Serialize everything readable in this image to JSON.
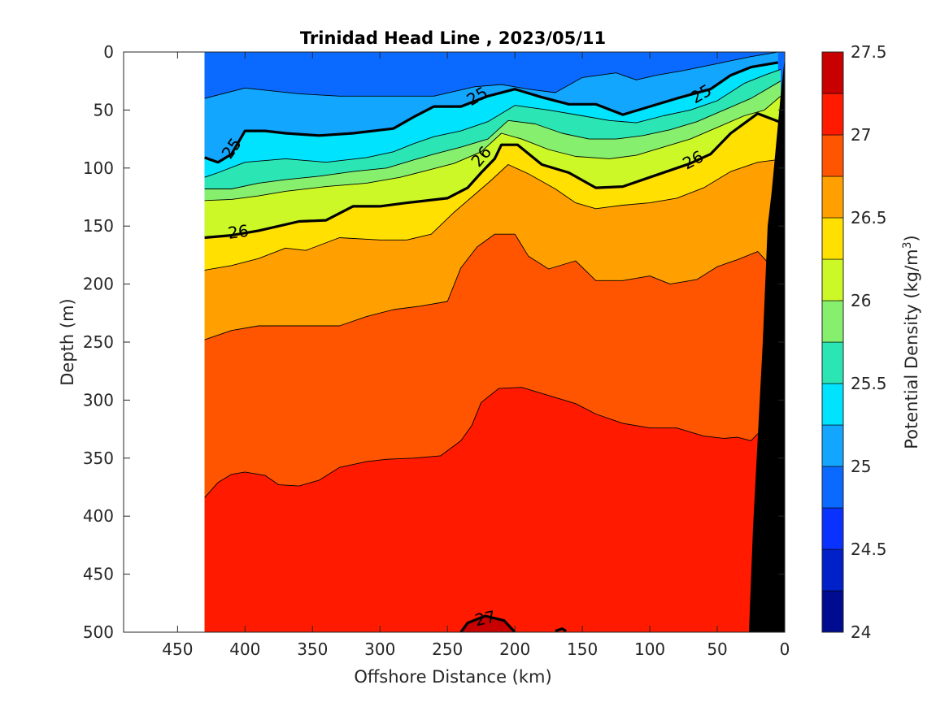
{
  "chart_data": {
    "type": "contour",
    "title": "Trinidad Head Line , 2023/05/11",
    "xlabel": "Offshore Distance (km)",
    "ylabel": "Depth (m)",
    "xlim": [
      490,
      0
    ],
    "ylim": [
      0,
      500
    ],
    "x_reversed": true,
    "y_reversed": true,
    "xticks": [
      450,
      400,
      350,
      300,
      250,
      200,
      150,
      100,
      50,
      0
    ],
    "yticks": [
      0,
      50,
      100,
      150,
      200,
      250,
      300,
      350,
      400,
      450,
      500
    ],
    "data_extent_x": [
      430,
      0
    ],
    "colorbar": {
      "label_main": "Potential Density (kg/m",
      "label_sup": "3",
      "label_end": ")",
      "range": [
        24,
        27.5
      ],
      "step": 0.25,
      "ticks": [
        24,
        24.5,
        25,
        25.5,
        26,
        26.5,
        27,
        27.5
      ],
      "tick_labels": [
        "24",
        "24.5",
        "25",
        "25.5",
        "26",
        "26.5",
        "27",
        "27.5"
      ],
      "colors": [
        "#000c8f",
        "#0020c8",
        "#0a32ff",
        "#0a6aff",
        "#13a6ff",
        "#00e3ff",
        "#2be6b4",
        "#86f06e",
        "#cdf827",
        "#ffe000",
        "#ffa000",
        "#ff5500",
        "#ff1a00",
        "#c80000"
      ]
    },
    "levels": [
      {
        "value": 24.75,
        "bold": false,
        "points": [
          [
            430,
            0
          ],
          [
            390,
            0
          ],
          [
            350,
            0
          ],
          [
            300,
            0
          ],
          [
            250,
            0
          ],
          [
            200,
            0
          ],
          [
            150,
            0
          ],
          [
            100,
            0
          ],
          [
            50,
            0
          ],
          [
            0,
            0
          ]
        ]
      },
      {
        "value": 25.0,
        "bold": false,
        "points": [
          [
            430,
            40
          ],
          [
            400,
            31
          ],
          [
            360,
            36
          ],
          [
            330,
            38
          ],
          [
            300,
            38
          ],
          [
            260,
            38
          ],
          [
            230,
            30
          ],
          [
            210,
            28
          ],
          [
            190,
            32
          ],
          [
            170,
            35
          ],
          [
            150,
            22
          ],
          [
            125,
            18
          ],
          [
            110,
            24
          ],
          [
            95,
            20
          ],
          [
            75,
            16
          ],
          [
            50,
            10
          ],
          [
            25,
            4
          ],
          [
            5,
            0
          ]
        ]
      },
      {
        "value": 25.25,
        "bold": true,
        "points": [
          [
            430,
            91
          ],
          [
            420,
            95
          ],
          [
            410,
            88
          ],
          [
            400,
            68
          ],
          [
            385,
            68
          ],
          [
            370,
            70
          ],
          [
            345,
            72
          ],
          [
            320,
            70
          ],
          [
            290,
            66
          ],
          [
            275,
            56
          ],
          [
            260,
            47
          ],
          [
            240,
            47
          ],
          [
            220,
            38
          ],
          [
            200,
            32
          ],
          [
            180,
            39
          ],
          [
            160,
            45
          ],
          [
            140,
            45
          ],
          [
            120,
            54
          ],
          [
            100,
            47
          ],
          [
            80,
            40
          ],
          [
            55,
            32
          ],
          [
            40,
            20
          ],
          [
            25,
            13
          ],
          [
            5,
            9
          ]
        ]
      },
      {
        "value": 25.5,
        "bold": false,
        "points": [
          [
            430,
            108
          ],
          [
            420,
            104
          ],
          [
            400,
            95
          ],
          [
            370,
            92
          ],
          [
            340,
            95
          ],
          [
            310,
            91
          ],
          [
            290,
            86
          ],
          [
            275,
            79
          ],
          [
            260,
            73
          ],
          [
            240,
            68
          ],
          [
            220,
            60
          ],
          [
            200,
            46
          ],
          [
            175,
            50
          ],
          [
            150,
            55
          ],
          [
            130,
            59
          ],
          [
            110,
            61
          ],
          [
            90,
            55
          ],
          [
            70,
            50
          ],
          [
            50,
            42
          ],
          [
            30,
            27
          ],
          [
            15,
            20
          ],
          [
            3,
            15
          ]
        ]
      },
      {
        "value": 25.75,
        "bold": false,
        "points": [
          [
            430,
            118
          ],
          [
            410,
            118
          ],
          [
            390,
            113
          ],
          [
            370,
            110
          ],
          [
            345,
            107
          ],
          [
            320,
            103
          ],
          [
            295,
            100
          ],
          [
            275,
            93
          ],
          [
            260,
            88
          ],
          [
            240,
            82
          ],
          [
            220,
            75
          ],
          [
            205,
            59
          ],
          [
            185,
            62
          ],
          [
            165,
            70
          ],
          [
            145,
            75
          ],
          [
            125,
            75
          ],
          [
            105,
            72
          ],
          [
            85,
            67
          ],
          [
            65,
            60
          ],
          [
            45,
            50
          ],
          [
            25,
            40
          ],
          [
            3,
            25
          ]
        ]
      },
      {
        "value": 26.0,
        "bold": false,
        "points": [
          [
            430,
            128
          ],
          [
            410,
            127
          ],
          [
            390,
            124
          ],
          [
            370,
            120
          ],
          [
            340,
            116
          ],
          [
            310,
            113
          ],
          [
            285,
            108
          ],
          [
            265,
            102
          ],
          [
            245,
            96
          ],
          [
            225,
            86
          ],
          [
            210,
            70
          ],
          [
            195,
            75
          ],
          [
            175,
            84
          ],
          [
            155,
            90
          ],
          [
            130,
            92
          ],
          [
            110,
            89
          ],
          [
            90,
            82
          ],
          [
            70,
            75
          ],
          [
            50,
            65
          ],
          [
            30,
            55
          ],
          [
            15,
            50
          ],
          [
            3,
            38
          ]
        ]
      },
      {
        "value": 26.25,
        "bold": true,
        "points": [
          [
            430,
            160
          ],
          [
            410,
            158
          ],
          [
            390,
            154
          ],
          [
            360,
            146
          ],
          [
            340,
            145
          ],
          [
            320,
            133
          ],
          [
            300,
            133
          ],
          [
            280,
            130
          ],
          [
            250,
            126
          ],
          [
            235,
            117
          ],
          [
            225,
            104
          ],
          [
            215,
            92
          ],
          [
            210,
            80
          ],
          [
            198,
            80
          ],
          [
            180,
            97
          ],
          [
            160,
            104
          ],
          [
            140,
            117
          ],
          [
            120,
            116
          ],
          [
            100,
            108
          ],
          [
            80,
            100
          ],
          [
            70,
            96
          ],
          [
            55,
            88
          ],
          [
            40,
            70
          ],
          [
            20,
            53
          ],
          [
            0,
            62
          ]
        ]
      },
      {
        "value": 26.5,
        "bold": false,
        "points": [
          [
            430,
            188
          ],
          [
            410,
            184
          ],
          [
            390,
            178
          ],
          [
            370,
            169
          ],
          [
            355,
            171
          ],
          [
            330,
            160
          ],
          [
            300,
            162
          ],
          [
            280,
            162
          ],
          [
            262,
            157
          ],
          [
            245,
            138
          ],
          [
            232,
            125
          ],
          [
            218,
            111
          ],
          [
            205,
            97
          ],
          [
            190,
            105
          ],
          [
            170,
            118
          ],
          [
            155,
            130
          ],
          [
            140,
            135
          ],
          [
            120,
            132
          ],
          [
            100,
            130
          ],
          [
            80,
            126
          ],
          [
            60,
            117
          ],
          [
            40,
            103
          ],
          [
            20,
            95
          ],
          [
            0,
            92
          ]
        ]
      },
      {
        "value": 26.75,
        "bold": false,
        "points": [
          [
            430,
            248
          ],
          [
            410,
            240
          ],
          [
            390,
            236
          ],
          [
            360,
            236
          ],
          [
            330,
            236
          ],
          [
            310,
            228
          ],
          [
            290,
            222
          ],
          [
            270,
            219
          ],
          [
            250,
            215
          ],
          [
            240,
            186
          ],
          [
            228,
            168
          ],
          [
            215,
            157
          ],
          [
            200,
            157
          ],
          [
            190,
            176
          ],
          [
            175,
            187
          ],
          [
            155,
            180
          ],
          [
            140,
            197
          ],
          [
            120,
            197
          ],
          [
            100,
            193
          ],
          [
            85,
            200
          ],
          [
            65,
            196
          ],
          [
            50,
            185
          ],
          [
            35,
            179
          ],
          [
            20,
            172
          ],
          [
            12,
            182
          ],
          [
            5,
            180
          ],
          [
            0,
            183
          ]
        ]
      },
      {
        "value": 27.0,
        "bold": false,
        "points": [
          [
            430,
            384
          ],
          [
            420,
            371
          ],
          [
            410,
            364
          ],
          [
            400,
            362
          ],
          [
            385,
            365
          ],
          [
            375,
            373
          ],
          [
            360,
            374
          ],
          [
            345,
            369
          ],
          [
            330,
            358
          ],
          [
            310,
            353
          ],
          [
            295,
            351
          ],
          [
            275,
            350
          ],
          [
            255,
            348
          ],
          [
            240,
            335
          ],
          [
            232,
            322
          ],
          [
            225,
            302
          ],
          [
            212,
            290
          ],
          [
            195,
            289
          ],
          [
            175,
            296
          ],
          [
            155,
            303
          ],
          [
            140,
            312
          ],
          [
            120,
            320
          ],
          [
            100,
            324
          ],
          [
            80,
            324
          ],
          [
            60,
            331
          ],
          [
            45,
            333
          ],
          [
            35,
            332
          ],
          [
            25,
            335
          ],
          [
            20,
            329
          ],
          [
            15,
            327
          ],
          [
            10,
            312
          ],
          [
            5,
            311
          ],
          [
            0,
            319
          ]
        ]
      },
      {
        "value": 27.25,
        "bold": true,
        "points": [
          [
            240,
            500
          ],
          [
            235,
            492
          ],
          [
            222,
            486
          ],
          [
            208,
            490
          ],
          [
            200,
            500
          ]
        ]
      }
    ],
    "extra_lines": [
      {
        "bold": true,
        "points": [
          [
            170,
            499
          ],
          [
            165,
            497
          ],
          [
            162,
            499
          ]
        ]
      }
    ],
    "contour_labels": [
      {
        "text": "25",
        "x": 410,
        "y": 83,
        "angle": -55
      },
      {
        "text": "25",
        "x": 228,
        "y": 38,
        "angle": -30
      },
      {
        "text": "25",
        "x": 62,
        "y": 36,
        "angle": -30
      },
      {
        "text": "26",
        "x": 405,
        "y": 155,
        "angle": -8
      },
      {
        "text": "26",
        "x": 225,
        "y": 90,
        "angle": -50
      },
      {
        "text": "26",
        "x": 68,
        "y": 93,
        "angle": -28
      },
      {
        "text": "27",
        "x": 222,
        "y": 488,
        "angle": -12
      }
    ]
  }
}
